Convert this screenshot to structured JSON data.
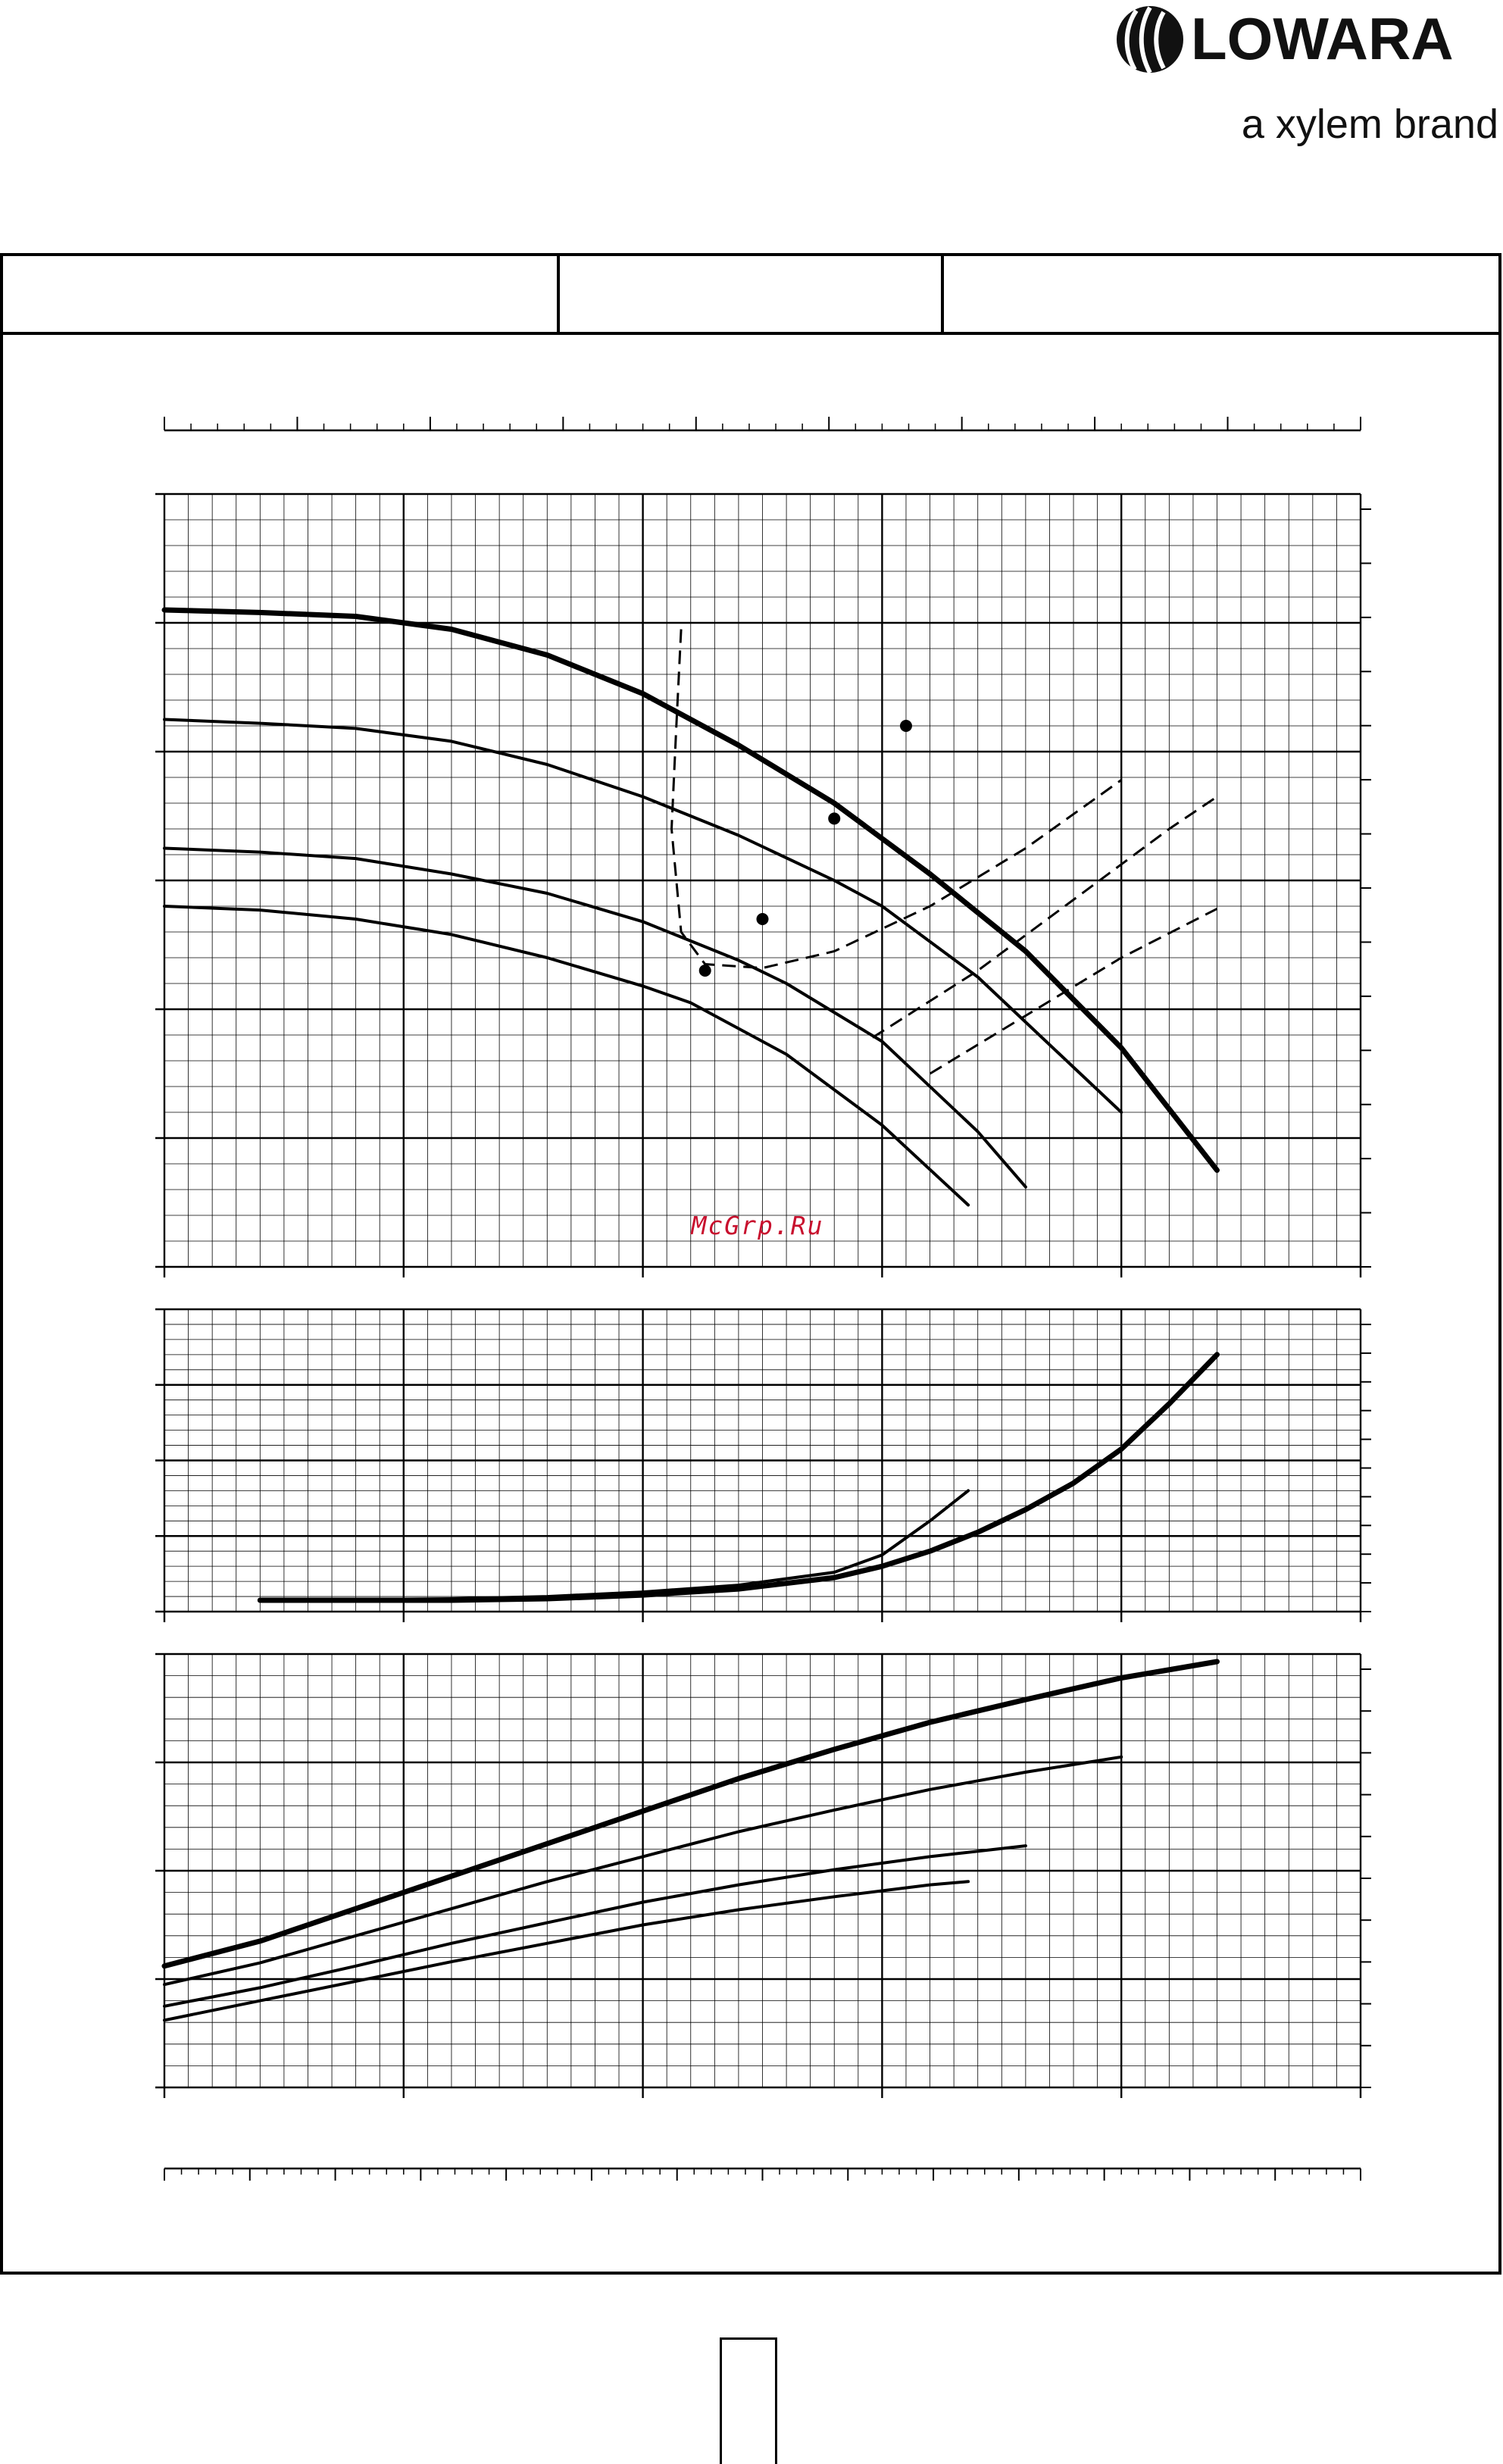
{
  "brand": {
    "name": "LOWARA",
    "tagline": "a xylem brand"
  },
  "watermark": "McGrp.Ru",
  "chart_data": [
    {
      "type": "line",
      "panel": "head",
      "grid": true,
      "xlim": [
        0,
        25
      ],
      "ylim": [
        0,
        6
      ],
      "series": [
        {
          "style": "bold",
          "points": [
            [
              0,
              5.1
            ],
            [
              2,
              5.08
            ],
            [
              4,
              5.05
            ],
            [
              6,
              4.95
            ],
            [
              8,
              4.75
            ],
            [
              10,
              4.45
            ],
            [
              12,
              4.05
            ],
            [
              14,
              3.6
            ],
            [
              16,
              3.05
            ],
            [
              18,
              2.45
            ],
            [
              20,
              1.7
            ],
            [
              22,
              0.75
            ]
          ]
        },
        {
          "style": "medium",
          "points": [
            [
              0,
              4.25
            ],
            [
              2,
              4.22
            ],
            [
              4,
              4.18
            ],
            [
              6,
              4.08
            ],
            [
              8,
              3.9
            ],
            [
              10,
              3.65
            ],
            [
              12,
              3.35
            ],
            [
              14,
              3.0
            ],
            [
              15,
              2.8
            ],
            [
              17,
              2.25
            ],
            [
              19,
              1.55
            ],
            [
              20,
              1.2
            ]
          ]
        },
        {
          "style": "medium",
          "points": [
            [
              0,
              3.25
            ],
            [
              2,
              3.22
            ],
            [
              4,
              3.17
            ],
            [
              6,
              3.05
            ],
            [
              8,
              2.9
            ],
            [
              10,
              2.68
            ],
            [
              12,
              2.38
            ],
            [
              13,
              2.2
            ],
            [
              15,
              1.75
            ],
            [
              17,
              1.05
            ],
            [
              18,
              0.62
            ]
          ]
        },
        {
          "style": "medium",
          "points": [
            [
              0,
              2.8
            ],
            [
              2,
              2.77
            ],
            [
              4,
              2.7
            ],
            [
              6,
              2.58
            ],
            [
              8,
              2.4
            ],
            [
              10,
              2.18
            ],
            [
              11,
              2.05
            ],
            [
              13,
              1.65
            ],
            [
              15,
              1.1
            ],
            [
              16.8,
              0.48
            ]
          ]
        }
      ],
      "operating_points": [
        [
          15.5,
          4.2
        ],
        [
          14,
          3.48
        ],
        [
          12.5,
          2.7
        ],
        [
          11.3,
          2.3
        ]
      ],
      "efficiency_curves": [
        {
          "points": [
            [
              10.8,
              4.95
            ],
            [
              10.7,
              4.2
            ],
            [
              10.6,
              3.4
            ],
            [
              10.8,
              2.6
            ],
            [
              11.3,
              2.35
            ],
            [
              12.5,
              2.32
            ],
            [
              14,
              2.45
            ],
            [
              16,
              2.8
            ],
            [
              18,
              3.25
            ],
            [
              20,
              3.78
            ]
          ]
        },
        {
          "points": [
            [
              14.8,
              1.78
            ],
            [
              17,
              2.3
            ],
            [
              19,
              2.85
            ],
            [
              21,
              3.4
            ],
            [
              22,
              3.65
            ]
          ]
        },
        {
          "points": [
            [
              16,
              1.5
            ],
            [
              18,
              1.95
            ],
            [
              20,
              2.4
            ],
            [
              22,
              2.78
            ]
          ]
        }
      ]
    },
    {
      "type": "line",
      "panel": "npsh",
      "grid": true,
      "xlim": [
        0,
        25
      ],
      "ylim": [
        0,
        4
      ],
      "series": [
        {
          "style": "bold",
          "points": [
            [
              2,
              0.15
            ],
            [
              4,
              0.15
            ],
            [
              6,
              0.15
            ],
            [
              8,
              0.17
            ],
            [
              10,
              0.22
            ],
            [
              12,
              0.3
            ],
            [
              14,
              0.45
            ],
            [
              15,
              0.6
            ],
            [
              16,
              0.8
            ],
            [
              17,
              1.05
            ],
            [
              18,
              1.35
            ],
            [
              19,
              1.7
            ],
            [
              20,
              2.15
            ],
            [
              21,
              2.75
            ],
            [
              22,
              3.4
            ]
          ]
        },
        {
          "style": "medium",
          "points": [
            [
              2,
              0.15
            ],
            [
              4,
              0.16
            ],
            [
              6,
              0.17
            ],
            [
              8,
              0.2
            ],
            [
              10,
              0.26
            ],
            [
              12,
              0.35
            ],
            [
              14,
              0.52
            ],
            [
              15,
              0.75
            ],
            [
              16,
              1.2
            ],
            [
              16.8,
              1.6
            ]
          ]
        }
      ]
    },
    {
      "type": "line",
      "panel": "power",
      "grid": true,
      "xlim": [
        0,
        25
      ],
      "ylim": [
        0,
        4
      ],
      "series": [
        {
          "style": "bold",
          "points": [
            [
              0,
              1.12
            ],
            [
              2,
              1.35
            ],
            [
              4,
              1.65
            ],
            [
              6,
              1.95
            ],
            [
              8,
              2.25
            ],
            [
              10,
              2.55
            ],
            [
              12,
              2.85
            ],
            [
              14,
              3.12
            ],
            [
              16,
              3.37
            ],
            [
              18,
              3.58
            ],
            [
              20,
              3.78
            ],
            [
              22,
              3.93
            ]
          ]
        },
        {
          "style": "medium",
          "points": [
            [
              0,
              0.95
            ],
            [
              2,
              1.15
            ],
            [
              4,
              1.4
            ],
            [
              6,
              1.65
            ],
            [
              8,
              1.9
            ],
            [
              10,
              2.13
            ],
            [
              12,
              2.36
            ],
            [
              14,
              2.56
            ],
            [
              16,
              2.75
            ],
            [
              18,
              2.91
            ],
            [
              20,
              3.05
            ]
          ]
        },
        {
          "style": "medium",
          "points": [
            [
              0,
              0.75
            ],
            [
              2,
              0.92
            ],
            [
              4,
              1.12
            ],
            [
              6,
              1.33
            ],
            [
              8,
              1.52
            ],
            [
              10,
              1.71
            ],
            [
              12,
              1.87
            ],
            [
              14,
              2.01
            ],
            [
              16,
              2.13
            ],
            [
              18,
              2.23
            ]
          ]
        },
        {
          "style": "medium",
          "points": [
            [
              0,
              0.62
            ],
            [
              2,
              0.8
            ],
            [
              4,
              0.98
            ],
            [
              6,
              1.16
            ],
            [
              8,
              1.33
            ],
            [
              10,
              1.5
            ],
            [
              12,
              1.64
            ],
            [
              14,
              1.76
            ],
            [
              16,
              1.87
            ],
            [
              16.8,
              1.9
            ]
          ]
        }
      ]
    }
  ]
}
